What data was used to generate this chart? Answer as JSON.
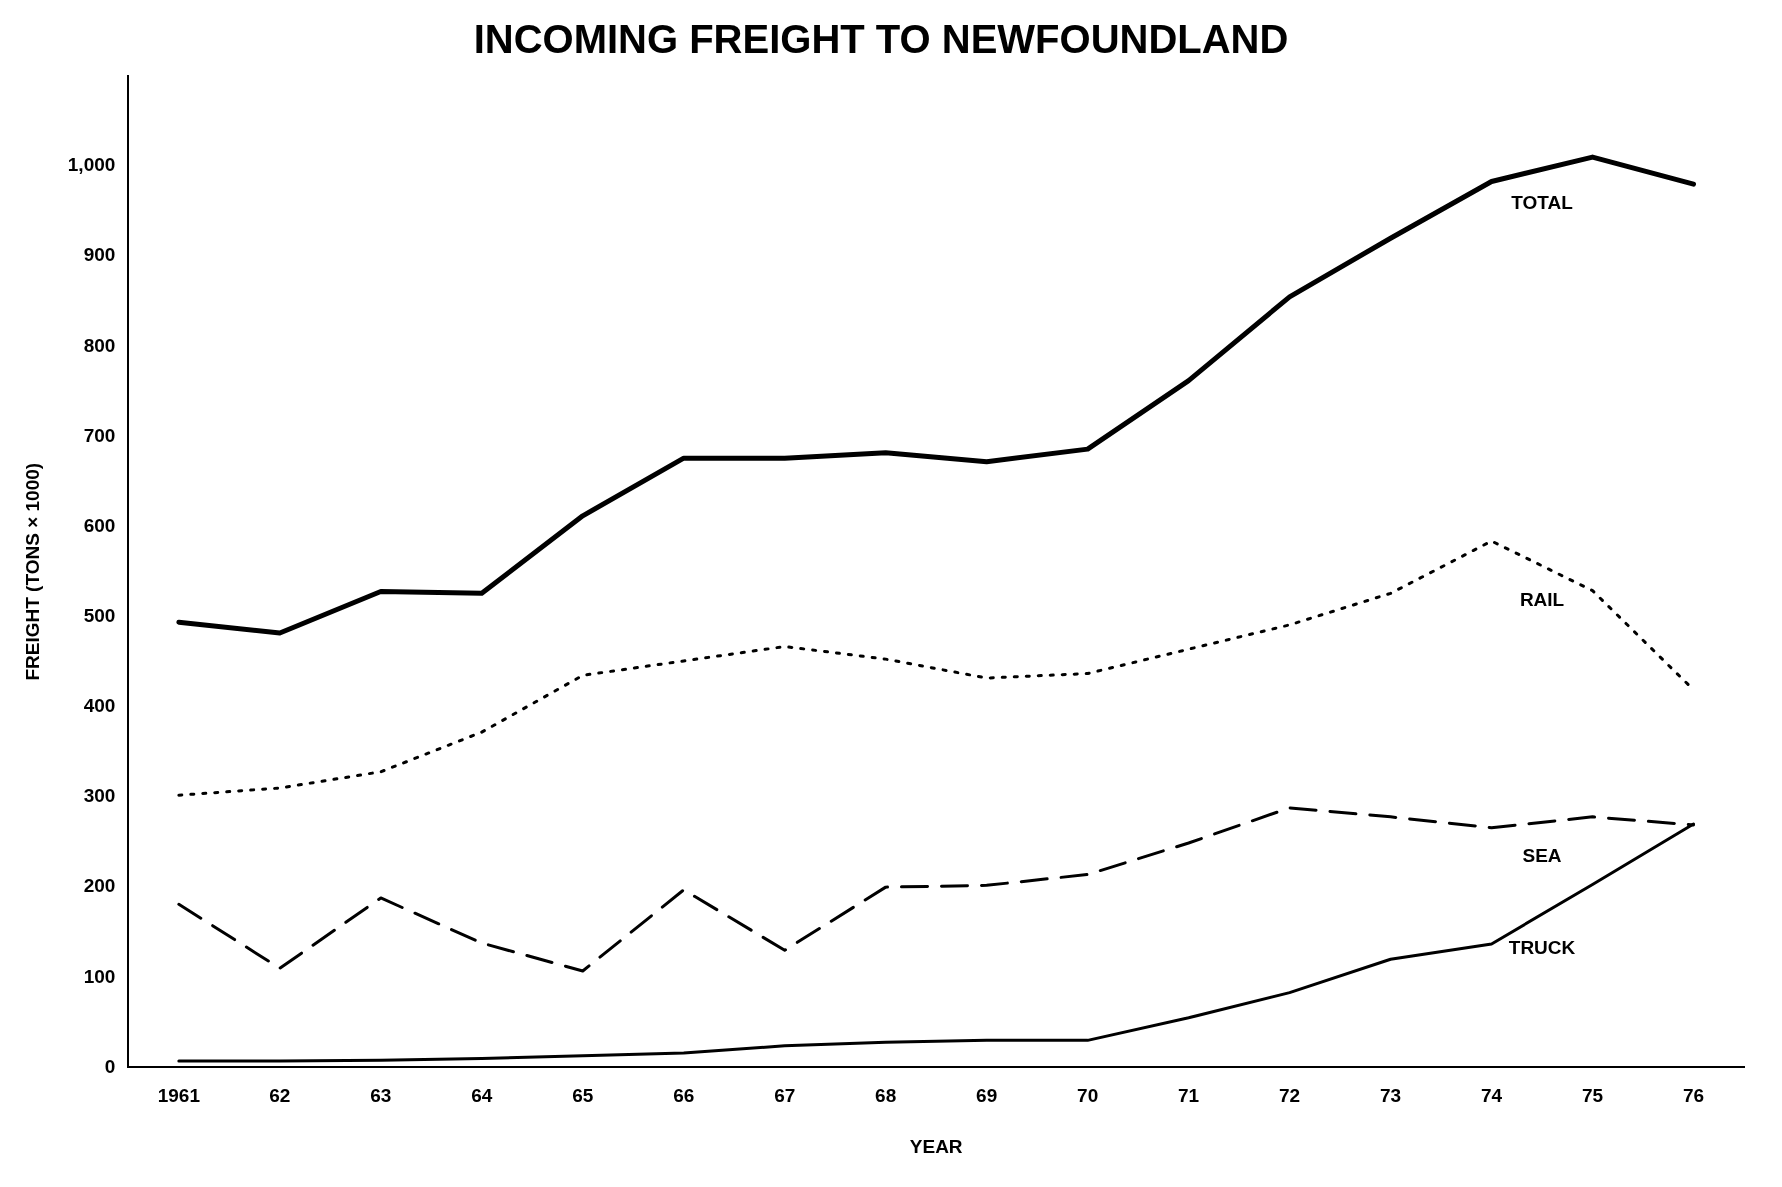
{
  "chart_data": {
    "type": "line",
    "title": "INCOMING FREIGHT TO NEWFOUNDLAND",
    "xlabel": "YEAR",
    "ylabel": "FREIGHT (TONS × 1000)",
    "categories": [
      "1961",
      "62",
      "63",
      "64",
      "65",
      "66",
      "67",
      "68",
      "69",
      "70",
      "71",
      "72",
      "73",
      "74",
      "75",
      "76"
    ],
    "series": [
      {
        "name": "TOTAL",
        "color": "#000000",
        "line_style": "solid",
        "values": [
          494,
          482,
          528,
          526,
          612,
          676,
          676,
          682,
          672,
          686,
          762,
          855,
          920,
          983,
          1010,
          980
        ]
      },
      {
        "name": "RAIL",
        "color": "#000000",
        "line_style": "dotted",
        "values": [
          302,
          310,
          328,
          372,
          435,
          451,
          467,
          453,
          432,
          437,
          464,
          491,
          526,
          584,
          529,
          419
        ]
      },
      {
        "name": "SEA",
        "color": "#000000",
        "line_style": "dashed",
        "values": [
          181,
          110,
          188,
          138,
          107,
          197,
          130,
          200,
          202,
          214,
          249,
          288,
          278,
          266,
          278,
          269
        ]
      },
      {
        "name": "TRUCK",
        "color": "#000000",
        "line_style": "solid",
        "values": [
          7,
          7,
          8,
          10,
          13,
          16,
          24,
          28,
          30,
          30,
          55,
          83,
          120,
          137,
          203,
          270
        ]
      }
    ],
    "ylim": [
      0,
      1100
    ],
    "yticks": [
      0,
      100,
      200,
      300,
      400,
      500,
      600,
      700,
      800,
      900,
      {
        "value": 1000,
        "label": "1,000"
      }
    ],
    "grid": false,
    "legend": false,
    "marker": "none"
  }
}
